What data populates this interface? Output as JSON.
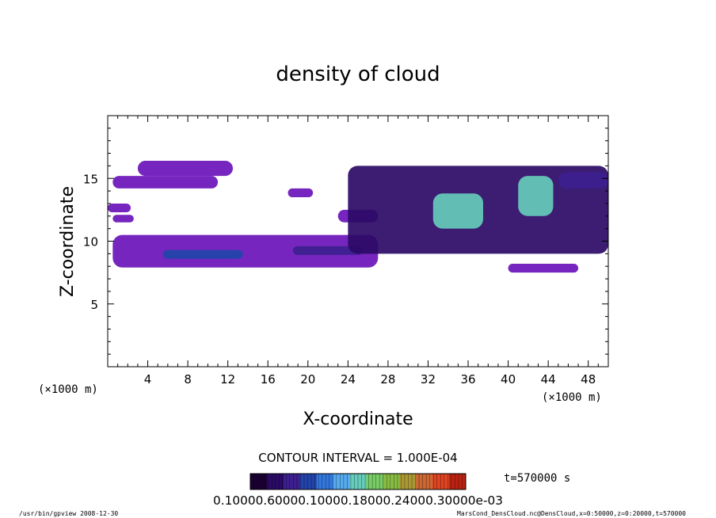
{
  "chart_data": {
    "type": "heatmap",
    "title": "density of cloud",
    "xlabel": "X-coordinate",
    "ylabel": "Z-coordinate",
    "x_unit_left": "(×1000 m)",
    "x_unit_right": "(×1000 m)",
    "xlim": [
      0,
      50
    ],
    "ylim": [
      0,
      20
    ],
    "xticks": [
      "4",
      "8",
      "12",
      "16",
      "20",
      "24",
      "28",
      "32",
      "36",
      "40",
      "44",
      "48"
    ],
    "yticks": [
      "5",
      "10",
      "15"
    ],
    "contour_interval": "CONTOUR INTERVAL = 1.000E-04",
    "time": "t=570000 s",
    "colorbar_labels": "0.10000.60000.10000.18000.24000.30000e-03",
    "colorbar_range": [
      0.0,
      0.0003
    ],
    "colormap": [
      "#1a0033",
      "#2b0a66",
      "#3d1f8f",
      "#2244aa",
      "#3377dd",
      "#55aaee",
      "#66ccbb",
      "#77cc66",
      "#88bb44",
      "#aa9933",
      "#cc6633",
      "#dd4422",
      "#bb2211"
    ],
    "regions": [
      {
        "name": "upper-left band",
        "x": [
          0.5,
          11.0
        ],
        "z": [
          14.2,
          15.2
        ],
        "level": 2e-05
      },
      {
        "name": "upper-left patch",
        "x": [
          3.0,
          12.5
        ],
        "z": [
          15.2,
          16.4
        ],
        "level": 2e-05
      },
      {
        "name": "left small band",
        "x": [
          0.0,
          2.3
        ],
        "z": [
          12.3,
          13.0
        ],
        "level": 2e-05
      },
      {
        "name": "left small band 2",
        "x": [
          0.5,
          2.6
        ],
        "z": [
          11.5,
          12.1
        ],
        "level": 2e-05
      },
      {
        "name": "lower-left layer",
        "x": [
          0.5,
          27.0
        ],
        "z": [
          7.9,
          10.5
        ],
        "level": 3e-05
      },
      {
        "name": "lower-left core 1",
        "x": [
          5.5,
          13.5
        ],
        "z": [
          8.6,
          9.3
        ],
        "level": 8e-05
      },
      {
        "name": "lower-left core 2",
        "x": [
          18.5,
          25.5
        ],
        "z": [
          8.9,
          9.6
        ],
        "level": 6e-05
      },
      {
        "name": "mid patch",
        "x": [
          23.0,
          27.0
        ],
        "z": [
          11.5,
          12.5
        ],
        "level": 2e-05
      },
      {
        "name": "small patch",
        "x": [
          18.0,
          20.5
        ],
        "z": [
          13.5,
          14.2
        ],
        "level": 2e-05
      },
      {
        "name": "right cloud body",
        "x": [
          24.0,
          50.0
        ],
        "z": [
          9.0,
          16.0
        ],
        "level": 4e-05
      },
      {
        "name": "right core 1",
        "x": [
          32.5,
          37.5
        ],
        "z": [
          11.0,
          13.8
        ],
        "level": 0.00014
      },
      {
        "name": "right core 2",
        "x": [
          41.0,
          44.5
        ],
        "z": [
          12.0,
          15.2
        ],
        "level": 0.00016
      },
      {
        "name": "right lower band",
        "x": [
          40.0,
          47.0
        ],
        "z": [
          7.5,
          8.2
        ],
        "level": 2e-05
      },
      {
        "name": "right upper band",
        "x": [
          45.0,
          50.0
        ],
        "z": [
          14.2,
          15.5
        ],
        "level": 5e-05
      }
    ]
  },
  "footer": {
    "left": "/usr/bin/gpview  2008-12-30",
    "right": "MarsCond_DensCloud.nc@DensCloud,x=0:50000,z=0:20000,t=570000"
  }
}
